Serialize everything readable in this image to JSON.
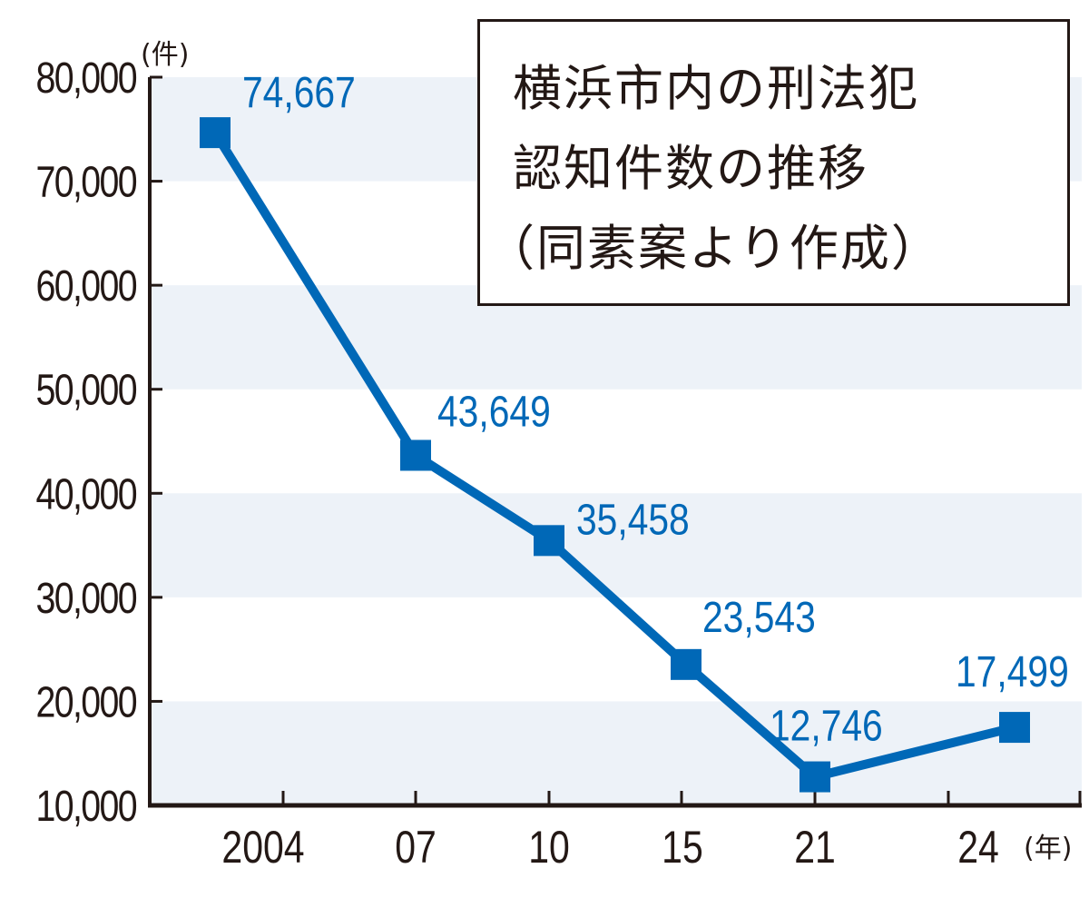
{
  "chart_data": {
    "type": "line",
    "title": [
      "横浜市内の刑法犯",
      "認知件数の推移",
      "（同素案より作成）"
    ],
    "y_unit": "(件)",
    "x_unit": "(年)",
    "categories": [
      "2004",
      "07",
      "10",
      "15",
      "21",
      "24"
    ],
    "point_labels": [
      "74,667",
      "43,649",
      "35,458",
      "23,543",
      "12,746",
      "17,499"
    ],
    "values": [
      74667,
      43649,
      35458,
      23543,
      12746,
      17499
    ],
    "ylim": [
      10000,
      80000
    ],
    "yticks": [
      "10,000",
      "20,000",
      "30,000",
      "40,000",
      "50,000",
      "60,000",
      "70,000",
      "80,000"
    ],
    "grid": "alternating horizontal bands",
    "colors": {
      "line": "#0068b7",
      "band": "#edf2f8",
      "axis": "#231815",
      "text": "#231815"
    }
  }
}
